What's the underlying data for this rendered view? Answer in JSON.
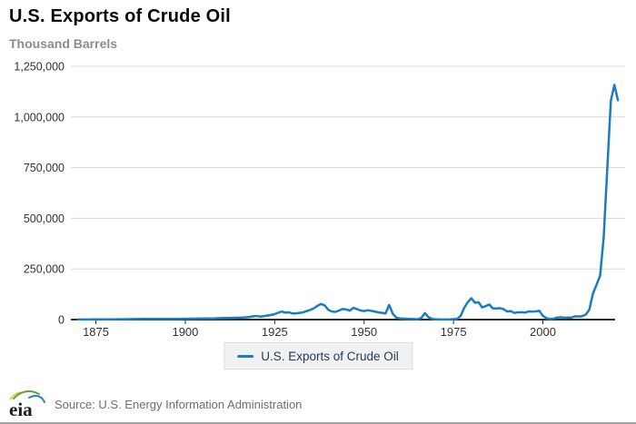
{
  "header": {
    "title": "U.S. Exports of Crude Oil",
    "units": "Thousand Barrels"
  },
  "legend": {
    "label": "U.S. Exports of Crude Oil"
  },
  "footer": {
    "logo_text": "eia",
    "source": "Source: U.S. Energy Information Administration"
  },
  "colors": {
    "line": "#1a7cc1",
    "grid": "#d8d8d8",
    "axis": "#2b2b2b",
    "tick_label": "#333333",
    "legend_text": "#1f3a54",
    "legend_bg": "#f1f1f1",
    "subtitle": "#8c8c8c",
    "source_text": "#6e6e6e"
  },
  "chart_data": {
    "type": "line",
    "title": "U.S. Exports of Crude Oil",
    "ylabel": "Thousand Barrels",
    "xlim": [
      1868,
      2023
    ],
    "ylim": [
      0,
      1250000
    ],
    "grid": "horizontal",
    "legend_position": "bottom-center",
    "xtick_years": [
      1875,
      1900,
      1925,
      1950,
      1975,
      2000
    ],
    "xtick_labels": [
      "1875",
      "1900",
      "1925",
      "1950",
      "1975",
      "2000"
    ],
    "ytick_values": [
      0,
      250000,
      500000,
      750000,
      1000000,
      1250000
    ],
    "ytick_labels": [
      "0",
      "250,000",
      "500,000",
      "750,000",
      "1,000,000",
      "1,250,000"
    ],
    "series": [
      {
        "name": "U.S. Exports of Crude Oil",
        "x_start_year": 1870,
        "x_step": 1,
        "x_end_year": 2021,
        "values": [
          300,
          400,
          500,
          600,
          700,
          800,
          900,
          1000,
          1200,
          1400,
          1500,
          1700,
          1800,
          2000,
          2200,
          2400,
          2600,
          2800,
          3000,
          3200,
          3400,
          3600,
          3500,
          3400,
          3300,
          3200,
          3400,
          3600,
          3800,
          4000,
          4200,
          4400,
          4600,
          4800,
          5000,
          5200,
          5500,
          5800,
          6000,
          6500,
          7000,
          7500,
          8000,
          8500,
          9000,
          9500,
          10000,
          11000,
          13000,
          16000,
          18000,
          15000,
          17000,
          20000,
          23000,
          27000,
          34000,
          40000,
          34000,
          36000,
          30000,
          31000,
          33000,
          36000,
          42000,
          48000,
          56000,
          68000,
          77000,
          70000,
          48000,
          40000,
          38000,
          45000,
          52000,
          50000,
          44000,
          58000,
          52000,
          45000,
          42000,
          46000,
          43000,
          40000,
          36000,
          33000,
          30000,
          72000,
          30000,
          10000,
          6000,
          5000,
          4000,
          3000,
          2500,
          2000,
          8000,
          32000,
          12000,
          3000,
          2000,
          1000,
          500,
          500,
          1000,
          2165,
          2937,
          18143,
          57843,
          85563,
          105708,
          82961,
          85816,
          59986,
          66340,
          74522,
          55695,
          55056,
          56398,
          51624,
          39686,
          42172,
          32647,
          35945,
          36269,
          34620,
          40274,
          39786,
          40404,
          43395,
          18280,
          7303,
          3377,
          4341,
          9722,
          11677,
          9145,
          9907,
          10516,
          16013,
          15287,
          17060,
          24601,
          48767,
          128076,
          170776,
          216951,
          403758,
          735544,
          1079710,
          1158012,
          1082312
        ]
      }
    ]
  }
}
